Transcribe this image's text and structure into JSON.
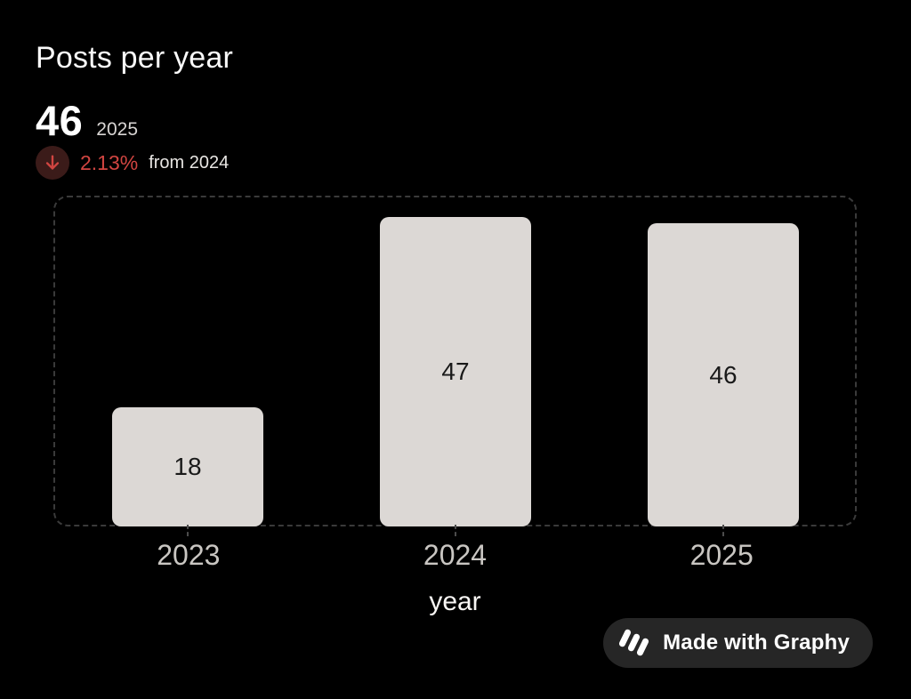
{
  "header": {
    "title": "Posts per year",
    "stat_value": "46",
    "stat_year": "2025",
    "change_percent": "2.13%",
    "change_suffix": "from 2024",
    "change_direction": "down"
  },
  "colors": {
    "background": "#000000",
    "bar_fill": "#dcd8d5",
    "bar_label": "#191919",
    "negative_red": "#d14541",
    "negative_red_bg": "#3b1b19",
    "dashed_border": "#3a3a3a",
    "x_label": "#c9c6c2"
  },
  "chart_data": {
    "type": "bar",
    "categories": [
      "2023",
      "2024",
      "2025"
    ],
    "values": [
      18,
      47,
      46
    ],
    "title": "Posts per year",
    "xlabel": "year",
    "ylabel": "",
    "ylim": [
      0,
      50
    ],
    "grid": false,
    "legend": false,
    "bar_labels_inside": true
  },
  "badge": {
    "label": "Made with Graphy"
  }
}
